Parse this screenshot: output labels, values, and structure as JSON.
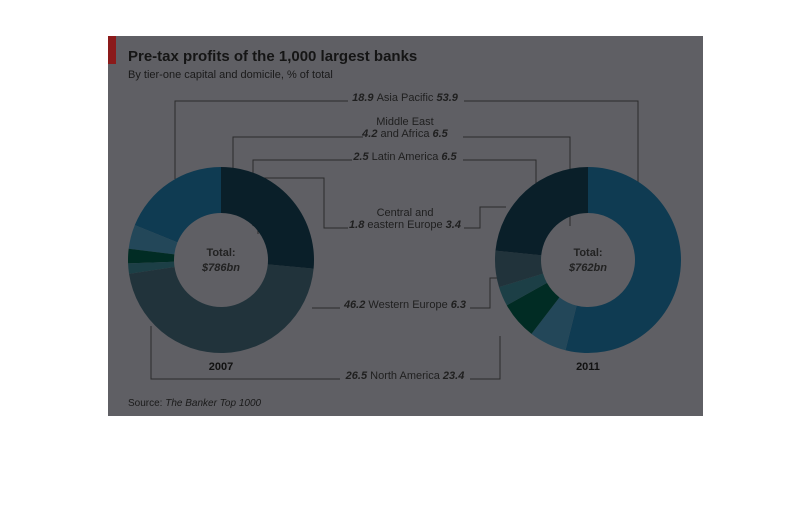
{
  "colors": {
    "background": "#5f5f64",
    "accent": "#8b1a1a",
    "north_america": "#0a1f29",
    "asia_pacific": "#0f3b52",
    "middle_east_africa": "#234759",
    "latin_america": "#012c24",
    "central_eastern_europe": "#1c3f46",
    "western_europe": "#21333b"
  },
  "chart_data": {
    "type": "pie",
    "title": "Pre-tax profits of the 1,000 largest banks",
    "subtitle": "By tier-one capital and domicile, % of total",
    "source_label": "Source:",
    "source_name": "The Banker Top 1000",
    "categories": [
      "Asia Pacific",
      "Middle East and Africa",
      "Latin America",
      "Central and eastern Europe",
      "Western Europe",
      "North America"
    ],
    "category_lines": [
      [
        "Asia Pacific"
      ],
      [
        "Middle East",
        "and Africa"
      ],
      [
        "Latin America"
      ],
      [
        "Central and",
        "eastern Europe"
      ],
      [
        "Western Europe"
      ],
      [
        "North America"
      ]
    ],
    "series": [
      {
        "name": "2007",
        "total": "$786bn",
        "values": [
          18.9,
          4.2,
          2.5,
          1.8,
          46.2,
          26.5
        ]
      },
      {
        "name": "2011",
        "total": "$762bn",
        "values": [
          53.9,
          6.5,
          6.5,
          3.4,
          6.3,
          23.4
        ]
      }
    ],
    "total_label": "Total:"
  }
}
